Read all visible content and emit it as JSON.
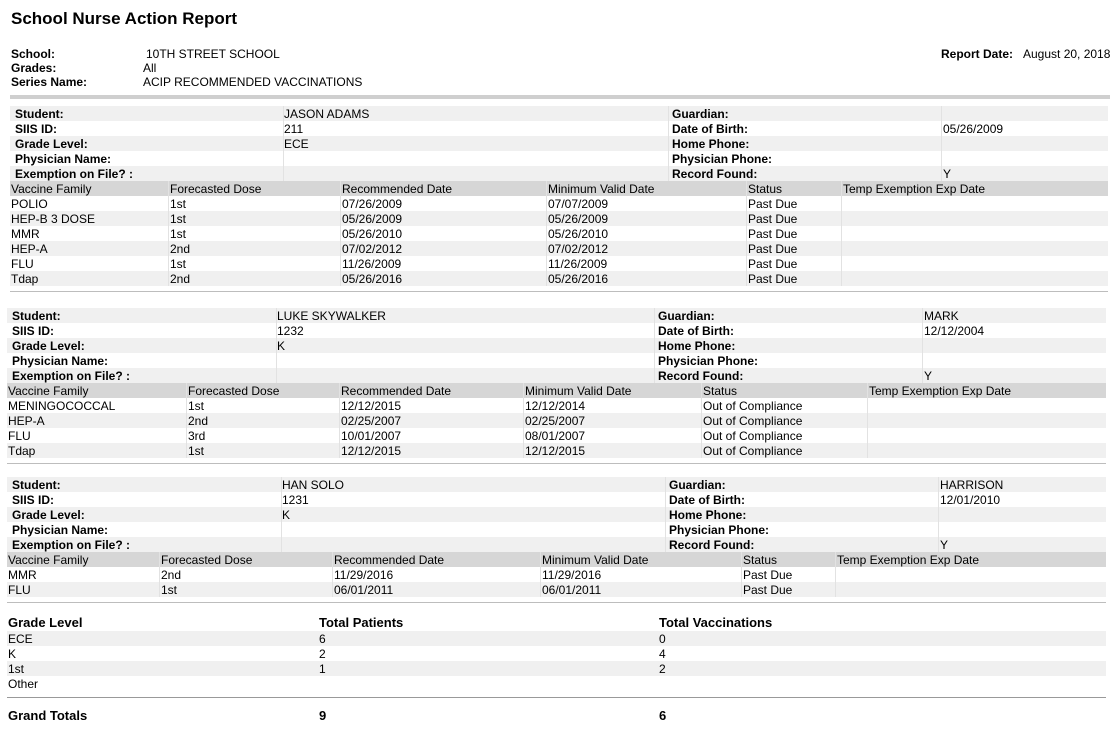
{
  "report": {
    "title": "School Nurse Action Report",
    "school_label": "School:",
    "school": "10TH STREET SCHOOL",
    "grades_label": "Grades:",
    "grades": "All",
    "series_label": "Series Name:",
    "series": "ACIP RECOMMENDED VACCINATIONS",
    "date_label": "Report Date:",
    "date": "August 20, 2018"
  },
  "labels": {
    "student": "Student:",
    "siis": "SIIS ID:",
    "grade": "Grade Level:",
    "physician": "Physician Name:",
    "exemption": "Exemption on File? :",
    "guardian": "Guardian:",
    "dob": "Date of Birth:",
    "home_phone": "Home Phone:",
    "physician_phone": "Physician Phone:",
    "record_found": "Record Found:"
  },
  "vaccine_headers": [
    "Vaccine Family",
    "Forecasted Dose",
    "Recommended Date",
    "Minimum Valid Date",
    "Status",
    "Temp Exemption Exp Date"
  ],
  "students": [
    {
      "name": "JASON ADAMS",
      "siis": "211",
      "grade": "ECE",
      "physician": "",
      "exemption": "",
      "guardian": "",
      "dob": "05/26/2009",
      "home_phone": "",
      "physician_phone": "",
      "record_found": "Y",
      "vaccines": [
        [
          "POLIO",
          "1st",
          "07/26/2009",
          "07/07/2009",
          "Past Due",
          ""
        ],
        [
          "HEP-B 3 DOSE",
          "1st",
          "05/26/2009",
          "05/26/2009",
          "Past Due",
          ""
        ],
        [
          "MMR",
          "1st",
          "05/26/2010",
          "05/26/2010",
          "Past Due",
          ""
        ],
        [
          "HEP-A",
          "2nd",
          "07/02/2012",
          "07/02/2012",
          "Past Due",
          ""
        ],
        [
          "FLU",
          "1st",
          "11/26/2009",
          "11/26/2009",
          "Past Due",
          ""
        ],
        [
          "Tdap",
          "2nd",
          "05/26/2016",
          "05/26/2016",
          "Past Due",
          ""
        ]
      ]
    },
    {
      "name": "LUKE SKYWALKER",
      "siis": "1232",
      "grade": "K",
      "physician": "",
      "exemption": "",
      "guardian": "MARK",
      "dob": "12/12/2004",
      "home_phone": "",
      "physician_phone": "",
      "record_found": "Y",
      "vaccines": [
        [
          "MENINGOCOCCAL",
          "1st",
          "12/12/2015",
          "12/12/2014",
          "Out of Compliance",
          ""
        ],
        [
          "HEP-A",
          "2nd",
          "02/25/2007",
          "02/25/2007",
          "Out of Compliance",
          ""
        ],
        [
          "FLU",
          "3rd",
          "10/01/2007",
          "08/01/2007",
          "Out of Compliance",
          ""
        ],
        [
          "Tdap",
          "1st",
          "12/12/2015",
          "12/12/2015",
          "Out of Compliance",
          ""
        ]
      ]
    },
    {
      "name": "HAN SOLO",
      "siis": "1231",
      "grade": "K",
      "physician": "",
      "exemption": "",
      "guardian": "HARRISON",
      "dob": "12/01/2010",
      "home_phone": "",
      "physician_phone": "",
      "record_found": "Y",
      "vaccines": [
        [
          "MMR",
          "2nd",
          "11/29/2016",
          "11/29/2016",
          "Past Due",
          ""
        ],
        [
          "FLU",
          "1st",
          "06/01/2011",
          "06/01/2011",
          "Past Due",
          ""
        ]
      ]
    }
  ],
  "summary": {
    "headers": [
      "Grade Level",
      "Total Patients",
      "Total Vaccinations"
    ],
    "rows": [
      [
        "ECE",
        "6",
        "0"
      ],
      [
        "K",
        "2",
        "4"
      ],
      [
        "1st",
        "1",
        "2"
      ],
      [
        "Other",
        "",
        ""
      ]
    ],
    "grand_label": "Grand Totals",
    "grand_patients": "9",
    "grand_vaccinations": "6"
  }
}
